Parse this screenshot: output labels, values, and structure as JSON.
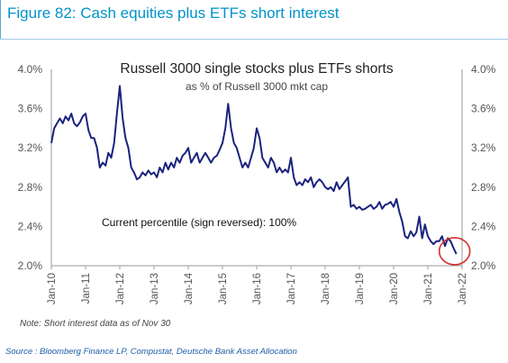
{
  "header": {
    "figure_title": "Figure 82: Cash equities plus ETFs short interest"
  },
  "footer": {
    "note": "Note: Short interest data as of Nov 30",
    "source": "Source : Bloomberg Finance LP, Compustat, Deutsche Bank Asset Allocation"
  },
  "colors": {
    "title": "#0093c9",
    "line": "#1a237e",
    "highlight_circle": "#d32f2f",
    "source": "#1d5fa8"
  },
  "chart_data": {
    "type": "line",
    "title": "Russell 3000 single stocks plus ETFs shorts",
    "subtitle": "as % of Russell 3000 mkt cap",
    "annotation": "Current percentile (sign reversed): 100%",
    "ylim": [
      2.0,
      4.0
    ],
    "y_ticks": [
      "2.0%",
      "2.4%",
      "2.8%",
      "3.2%",
      "3.6%",
      "4.0%"
    ],
    "y_tick_values": [
      2.0,
      2.4,
      2.8,
      3.2,
      3.6,
      4.0
    ],
    "x_ticks": [
      "Jan-10",
      "Jan-11",
      "Jan-12",
      "Jan-13",
      "Jan-14",
      "Jan-15",
      "Jan-16",
      "Jan-17",
      "Jan-18",
      "Jan-19",
      "Jan-20",
      "Jan-21",
      "Jan-22"
    ],
    "xlim": [
      "2010-01",
      "2022-01"
    ],
    "grid": false,
    "highlight": "latest value circled",
    "series": [
      {
        "x": [
          "2010-01",
          "2010-02",
          "2010-03",
          "2010-04",
          "2010-05",
          "2010-06",
          "2010-07",
          "2010-08",
          "2010-09",
          "2010-10",
          "2010-11",
          "2010-12",
          "2011-01",
          "2011-02",
          "2011-03",
          "2011-04",
          "2011-05",
          "2011-06",
          "2011-07",
          "2011-08",
          "2011-09",
          "2011-10",
          "2011-11",
          "2011-12",
          "2012-01",
          "2012-02",
          "2012-03",
          "2012-04",
          "2012-05",
          "2012-06",
          "2012-07",
          "2012-08",
          "2012-09",
          "2012-10",
          "2012-11",
          "2012-12",
          "2013-01",
          "2013-02",
          "2013-03",
          "2013-04",
          "2013-05",
          "2013-06",
          "2013-07",
          "2013-08",
          "2013-09",
          "2013-10",
          "2013-11",
          "2013-12",
          "2014-01",
          "2014-02",
          "2014-03",
          "2014-04",
          "2014-05",
          "2014-06",
          "2014-07",
          "2014-08",
          "2014-09",
          "2014-10",
          "2014-11",
          "2014-12",
          "2015-01",
          "2015-02",
          "2015-03",
          "2015-04",
          "2015-05",
          "2015-06",
          "2015-07",
          "2015-08",
          "2015-09",
          "2015-10",
          "2015-11",
          "2015-12",
          "2016-01",
          "2016-02",
          "2016-03",
          "2016-04",
          "2016-05",
          "2016-06",
          "2016-07",
          "2016-08",
          "2016-09",
          "2016-10",
          "2016-11",
          "2016-12",
          "2017-01",
          "2017-02",
          "2017-03",
          "2017-04",
          "2017-05",
          "2017-06",
          "2017-07",
          "2017-08",
          "2017-09",
          "2017-10",
          "2017-11",
          "2017-12",
          "2018-01",
          "2018-02",
          "2018-03",
          "2018-04",
          "2018-05",
          "2018-06",
          "2018-07",
          "2018-08",
          "2018-09",
          "2018-10",
          "2018-11",
          "2018-12",
          "2019-01",
          "2019-02",
          "2019-03",
          "2019-04",
          "2019-05",
          "2019-06",
          "2019-07",
          "2019-08",
          "2019-09",
          "2019-10",
          "2019-11",
          "2019-12",
          "2020-01",
          "2020-02",
          "2020-03",
          "2020-04",
          "2020-05",
          "2020-06",
          "2020-07",
          "2020-08",
          "2020-09",
          "2020-10",
          "2020-11",
          "2020-12",
          "2021-01",
          "2021-02",
          "2021-03",
          "2021-04",
          "2021-05",
          "2021-06",
          "2021-07",
          "2021-08",
          "2021-09",
          "2021-10",
          "2021-11"
        ],
        "values": [
          3.25,
          3.4,
          3.45,
          3.5,
          3.45,
          3.52,
          3.48,
          3.55,
          3.45,
          3.42,
          3.46,
          3.52,
          3.55,
          3.38,
          3.3,
          3.3,
          3.2,
          3.0,
          3.05,
          3.02,
          3.15,
          3.1,
          3.25,
          3.55,
          3.83,
          3.5,
          3.3,
          3.2,
          3.0,
          2.95,
          2.88,
          2.9,
          2.95,
          2.92,
          2.97,
          2.93,
          2.95,
          2.9,
          3.0,
          2.95,
          3.05,
          2.98,
          3.05,
          3.0,
          3.1,
          3.05,
          3.12,
          3.15,
          3.2,
          3.05,
          3.1,
          3.15,
          3.05,
          3.1,
          3.15,
          3.1,
          3.05,
          3.1,
          3.12,
          3.18,
          3.25,
          3.4,
          3.65,
          3.4,
          3.25,
          3.2,
          3.1,
          3.0,
          3.05,
          3.0,
          3.1,
          3.2,
          3.4,
          3.3,
          3.1,
          3.05,
          3.0,
          3.1,
          3.05,
          2.95,
          3.0,
          2.95,
          2.98,
          2.95,
          3.1,
          2.9,
          2.82,
          2.85,
          2.82,
          2.88,
          2.85,
          2.9,
          2.8,
          2.85,
          2.88,
          2.85,
          2.8,
          2.78,
          2.8,
          2.76,
          2.85,
          2.78,
          2.82,
          2.86,
          2.9,
          2.6,
          2.62,
          2.58,
          2.6,
          2.57,
          2.58,
          2.6,
          2.62,
          2.58,
          2.6,
          2.65,
          2.58,
          2.62,
          2.63,
          2.65,
          2.6,
          2.68,
          2.55,
          2.45,
          2.3,
          2.28,
          2.35,
          2.3,
          2.34,
          2.5,
          2.28,
          2.42,
          2.3,
          2.25,
          2.22,
          2.25,
          2.25,
          2.3,
          2.2,
          2.28,
          2.25,
          2.18,
          2.12
        ]
      }
    ]
  }
}
